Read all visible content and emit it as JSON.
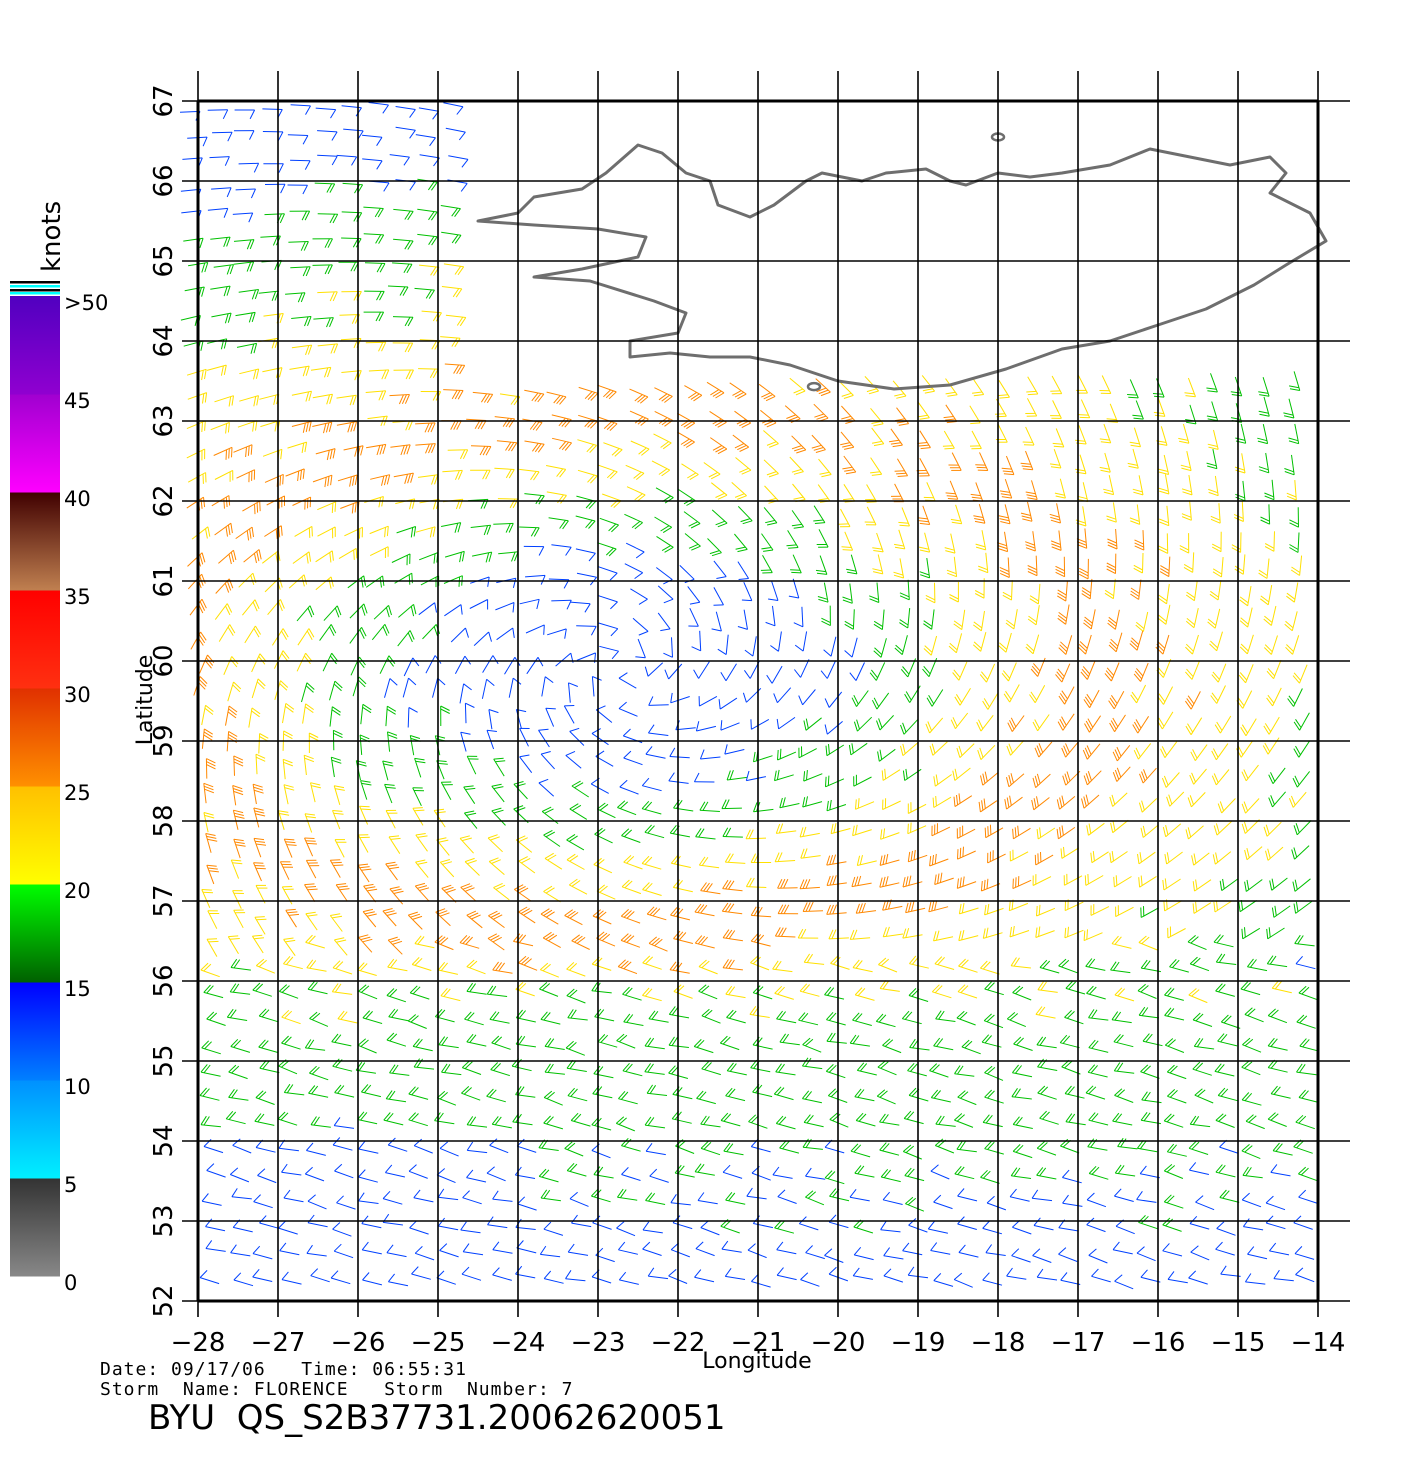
{
  "header": {
    "date_line": "Date: 09/17/06   Time: 06:55:31",
    "storm_line": "Storm  Name: FLORENCE   Storm  Number: 7",
    "file_id": "BYU  QS_S2B37731.20062620051"
  },
  "map": {
    "lon_range": [
      -28,
      -14
    ],
    "lat_range": [
      52,
      67
    ],
    "lon_ticks": [
      -28,
      -27,
      -26,
      -25,
      -24,
      -23,
      -22,
      -21,
      -20,
      -19,
      -18,
      -17,
      -16,
      -15,
      -14
    ],
    "lat_ticks": [
      52,
      53,
      54,
      55,
      56,
      57,
      58,
      59,
      60,
      61,
      62,
      63,
      64,
      65,
      66,
      67
    ],
    "lon_tick_labels": [
      "−28",
      "−27",
      "−26",
      "−25",
      "−24",
      "−23",
      "−22",
      "−21",
      "−20",
      "−19",
      "−18",
      "−17",
      "−16",
      "−15",
      "−14"
    ],
    "lat_tick_labels": [
      "52",
      "53",
      "54",
      "55",
      "56",
      "57",
      "58",
      "59",
      "60",
      "61",
      "62",
      "63",
      "64",
      "65",
      "66",
      "67"
    ],
    "xlabel": "Longitude",
    "ylabel": "Latitude",
    "grid": true,
    "coastline_color": "#6e6e6e",
    "storm_center": {
      "lon": -22.7,
      "lat": 59.9
    }
  },
  "colorbar": {
    "title": "knots",
    "labels": [
      ">50",
      "45",
      "40",
      "35",
      "30",
      "25",
      "20",
      "15",
      "10",
      "5",
      "0"
    ],
    "segments": [
      {
        "from": 0,
        "to": 5,
        "top": "#333333",
        "bottom": "#888888"
      },
      {
        "from": 5,
        "to": 10,
        "top": "#0090ff",
        "bottom": "#00f0ff"
      },
      {
        "from": 10,
        "to": 15,
        "top": "#0000ff",
        "bottom": "#0080ff"
      },
      {
        "from": 15,
        "to": 20,
        "top": "#00ff00",
        "bottom": "#006000"
      },
      {
        "from": 20,
        "to": 25,
        "top": "#ffc000",
        "bottom": "#ffff00"
      },
      {
        "from": 25,
        "to": 30,
        "top": "#e03000",
        "bottom": "#ff9000"
      },
      {
        "from": 30,
        "to": 35,
        "top": "#ff0000",
        "bottom": "#ff3010"
      },
      {
        "from": 35,
        "to": 40,
        "top": "#400000",
        "bottom": "#c08050"
      },
      {
        "from": 40,
        "to": 45,
        "top": "#a000d0",
        "bottom": "#ff00ff"
      },
      {
        "from": 45,
        "to": 50,
        "top": "#5000c0",
        "bottom": "#9000d0"
      }
    ]
  },
  "wind_colors": [
    "#0040ff",
    "#00c000",
    "#ffe000",
    "#ff8800",
    "#e02000"
  ]
}
